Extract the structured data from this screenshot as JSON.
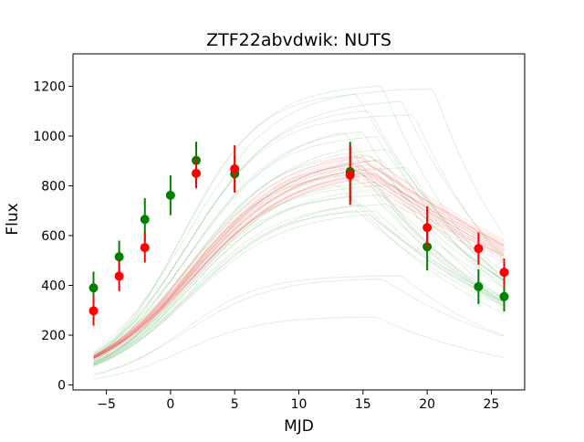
{
  "chart_data": {
    "type": "scatter",
    "title": "ZTF22abvdwik: NUTS",
    "xlabel": "MJD",
    "ylabel": "Flux",
    "xlim": [
      -7.6,
      27.6
    ],
    "ylim": [
      -20,
      1330
    ],
    "xticks": [
      -5,
      0,
      5,
      10,
      15,
      20,
      25
    ],
    "yticks": [
      0,
      200,
      400,
      600,
      800,
      1000,
      1200
    ],
    "xtick_labels": [
      "−5",
      "0",
      "5",
      "10",
      "15",
      "20",
      "25"
    ],
    "ytick_labels": [
      "0",
      "200",
      "400",
      "600",
      "800",
      "1000",
      "1200"
    ],
    "grid": false,
    "legend": "none",
    "colors": {
      "green": "#008000",
      "red": "#ff0000",
      "axes": "#000000",
      "background": "#ffffff"
    },
    "series": [
      {
        "color": "green",
        "points": [
          {
            "x": -6,
            "y": 390,
            "err": 65
          },
          {
            "x": -4,
            "y": 515,
            "err": 65
          },
          {
            "x": -2,
            "y": 665,
            "err": 85
          },
          {
            "x": 0,
            "y": 762,
            "err": 80
          },
          {
            "x": 2,
            "y": 902,
            "err": 75
          },
          {
            "x": 5,
            "y": 848,
            "err": 75
          },
          {
            "x": 14,
            "y": 857,
            "err": 120
          },
          {
            "x": 20,
            "y": 555,
            "err": 95
          },
          {
            "x": 24,
            "y": 395,
            "err": 70
          },
          {
            "x": 26,
            "y": 355,
            "err": 60
          }
        ]
      },
      {
        "color": "red",
        "points": [
          {
            "x": -6,
            "y": 298,
            "err": 60
          },
          {
            "x": -4,
            "y": 437,
            "err": 60
          },
          {
            "x": -2,
            "y": 552,
            "err": 60
          },
          {
            "x": 2,
            "y": 850,
            "err": 60
          },
          {
            "x": 5,
            "y": 868,
            "err": 95
          },
          {
            "x": 14,
            "y": 843,
            "err": 120
          },
          {
            "x": 20,
            "y": 632,
            "err": 85
          },
          {
            "x": 24,
            "y": 548,
            "err": 65
          },
          {
            "x": 26,
            "y": 453,
            "err": 55
          }
        ]
      }
    ],
    "posterior_samples": {
      "x_range": [
        -6,
        26
      ],
      "green": [
        {
          "A": 1210,
          "t0": 1.0,
          "trise": 3.2,
          "tplat": 16.5,
          "tfall": 9
        },
        {
          "A": 1195,
          "t0": 1.2,
          "trise": 3.5,
          "tplat": 20.5,
          "tfall": 8
        },
        {
          "A": 1180,
          "t0": 0.8,
          "trise": 3.0,
          "tplat": 14.5,
          "tfall": 12
        },
        {
          "A": 1150,
          "t0": 1.5,
          "trise": 3.6,
          "tplat": 18.0,
          "tfall": 10
        },
        {
          "A": 1120,
          "t0": 1.3,
          "trise": 3.4,
          "tplat": 15.5,
          "tfall": 11
        },
        {
          "A": 1090,
          "t0": 1.1,
          "trise": 3.3,
          "tplat": 19.0,
          "tfall": 9
        },
        {
          "A": 1060,
          "t0": 1.6,
          "trise": 3.8,
          "tplat": 13.5,
          "tfall": 13
        },
        {
          "A": 1040,
          "t0": 1.4,
          "trise": 3.5,
          "tplat": 15.0,
          "tfall": 10
        },
        {
          "A": 1010,
          "t0": 1.2,
          "trise": 3.4,
          "tplat": 16.0,
          "tfall": 12
        },
        {
          "A": 990,
          "t0": 1.7,
          "trise": 3.9,
          "tplat": 14.0,
          "tfall": 11
        },
        {
          "A": 960,
          "t0": 1.5,
          "trise": 3.6,
          "tplat": 17.0,
          "tfall": 10
        },
        {
          "A": 940,
          "t0": 1.3,
          "trise": 3.4,
          "tplat": 15.5,
          "tfall": 13
        },
        {
          "A": 920,
          "t0": 1.8,
          "trise": 3.7,
          "tplat": 16.5,
          "tfall": 12
        },
        {
          "A": 900,
          "t0": 1.4,
          "trise": 3.3,
          "tplat": 14.5,
          "tfall": 11
        },
        {
          "A": 880,
          "t0": 1.6,
          "trise": 3.5,
          "tplat": 18.5,
          "tfall": 10
        },
        {
          "A": 860,
          "t0": 1.2,
          "trise": 3.2,
          "tplat": 15.0,
          "tfall": 14
        },
        {
          "A": 850,
          "t0": 1.9,
          "trise": 3.8,
          "tplat": 13.0,
          "tfall": 12
        },
        {
          "A": 830,
          "t0": 1.5,
          "trise": 3.6,
          "tplat": 16.0,
          "tfall": 11
        },
        {
          "A": 810,
          "t0": 1.3,
          "trise": 3.4,
          "tplat": 17.5,
          "tfall": 13
        },
        {
          "A": 800,
          "t0": 1.7,
          "trise": 3.7,
          "tplat": 15.5,
          "tfall": 12
        },
        {
          "A": 780,
          "t0": 1.5,
          "trise": 3.5,
          "tplat": 14.0,
          "tfall": 14
        },
        {
          "A": 770,
          "t0": 1.2,
          "trise": 3.3,
          "tplat": 16.5,
          "tfall": 11
        },
        {
          "A": 750,
          "t0": 1.8,
          "trise": 3.9,
          "tplat": 15.0,
          "tfall": 13
        },
        {
          "A": 735,
          "t0": 1.4,
          "trise": 3.5,
          "tplat": 17.0,
          "tfall": 12
        },
        {
          "A": 720,
          "t0": 1.6,
          "trise": 3.6,
          "tplat": 14.5,
          "tfall": 14
        },
        {
          "A": 710,
          "t0": 1.3,
          "trise": 3.4,
          "tplat": 16.0,
          "tfall": 13
        },
        {
          "A": 700,
          "t0": 1.5,
          "trise": 3.7,
          "tplat": 15.5,
          "tfall": 15
        },
        {
          "A": 440,
          "t0": 1.0,
          "trise": 3.0,
          "tplat": 18.0,
          "tfall": 10
        },
        {
          "A": 430,
          "t0": 1.2,
          "trise": 3.3,
          "tplat": 16.5,
          "tfall": 12
        },
        {
          "A": 275,
          "t0": 1.0,
          "trise": 3.0,
          "tplat": 16.0,
          "tfall": 11
        }
      ],
      "red": [
        {
          "A": 950,
          "t0": 1.5,
          "trise": 3.8,
          "tplat": 14.5,
          "tfall": 22
        },
        {
          "A": 945,
          "t0": 1.7,
          "trise": 3.9,
          "tplat": 15.0,
          "tfall": 21
        },
        {
          "A": 940,
          "t0": 1.4,
          "trise": 3.7,
          "tplat": 15.5,
          "tfall": 22
        },
        {
          "A": 935,
          "t0": 1.8,
          "trise": 4.0,
          "tplat": 14.0,
          "tfall": 23
        },
        {
          "A": 930,
          "t0": 1.6,
          "trise": 3.8,
          "tplat": 15.0,
          "tfall": 21
        },
        {
          "A": 925,
          "t0": 1.5,
          "trise": 3.9,
          "tplat": 16.0,
          "tfall": 20
        },
        {
          "A": 920,
          "t0": 1.7,
          "trise": 3.8,
          "tplat": 14.5,
          "tfall": 22
        },
        {
          "A": 915,
          "t0": 1.9,
          "trise": 4.1,
          "tplat": 15.0,
          "tfall": 21
        },
        {
          "A": 910,
          "t0": 1.6,
          "trise": 3.9,
          "tplat": 15.5,
          "tfall": 23
        },
        {
          "A": 905,
          "t0": 1.5,
          "trise": 3.7,
          "tplat": 14.0,
          "tfall": 22
        },
        {
          "A": 900,
          "t0": 1.8,
          "trise": 4.0,
          "tplat": 15.0,
          "tfall": 20
        },
        {
          "A": 895,
          "t0": 1.7,
          "trise": 3.9,
          "tplat": 16.0,
          "tfall": 22
        },
        {
          "A": 890,
          "t0": 1.6,
          "trise": 3.8,
          "tplat": 14.5,
          "tfall": 21
        },
        {
          "A": 885,
          "t0": 1.9,
          "trise": 4.1,
          "tplat": 15.5,
          "tfall": 23
        },
        {
          "A": 880,
          "t0": 1.5,
          "trise": 3.8,
          "tplat": 15.0,
          "tfall": 22
        },
        {
          "A": 875,
          "t0": 1.8,
          "trise": 4.0,
          "tplat": 14.0,
          "tfall": 21
        },
        {
          "A": 870,
          "t0": 1.7,
          "trise": 3.9,
          "tplat": 16.0,
          "tfall": 20
        },
        {
          "A": 865,
          "t0": 1.6,
          "trise": 3.9,
          "tplat": 15.5,
          "tfall": 22
        },
        {
          "A": 860,
          "t0": 1.8,
          "trise": 4.0,
          "tplat": 14.5,
          "tfall": 23
        },
        {
          "A": 855,
          "t0": 1.7,
          "trise": 3.8,
          "tplat": 15.0,
          "tfall": 21
        }
      ]
    }
  }
}
